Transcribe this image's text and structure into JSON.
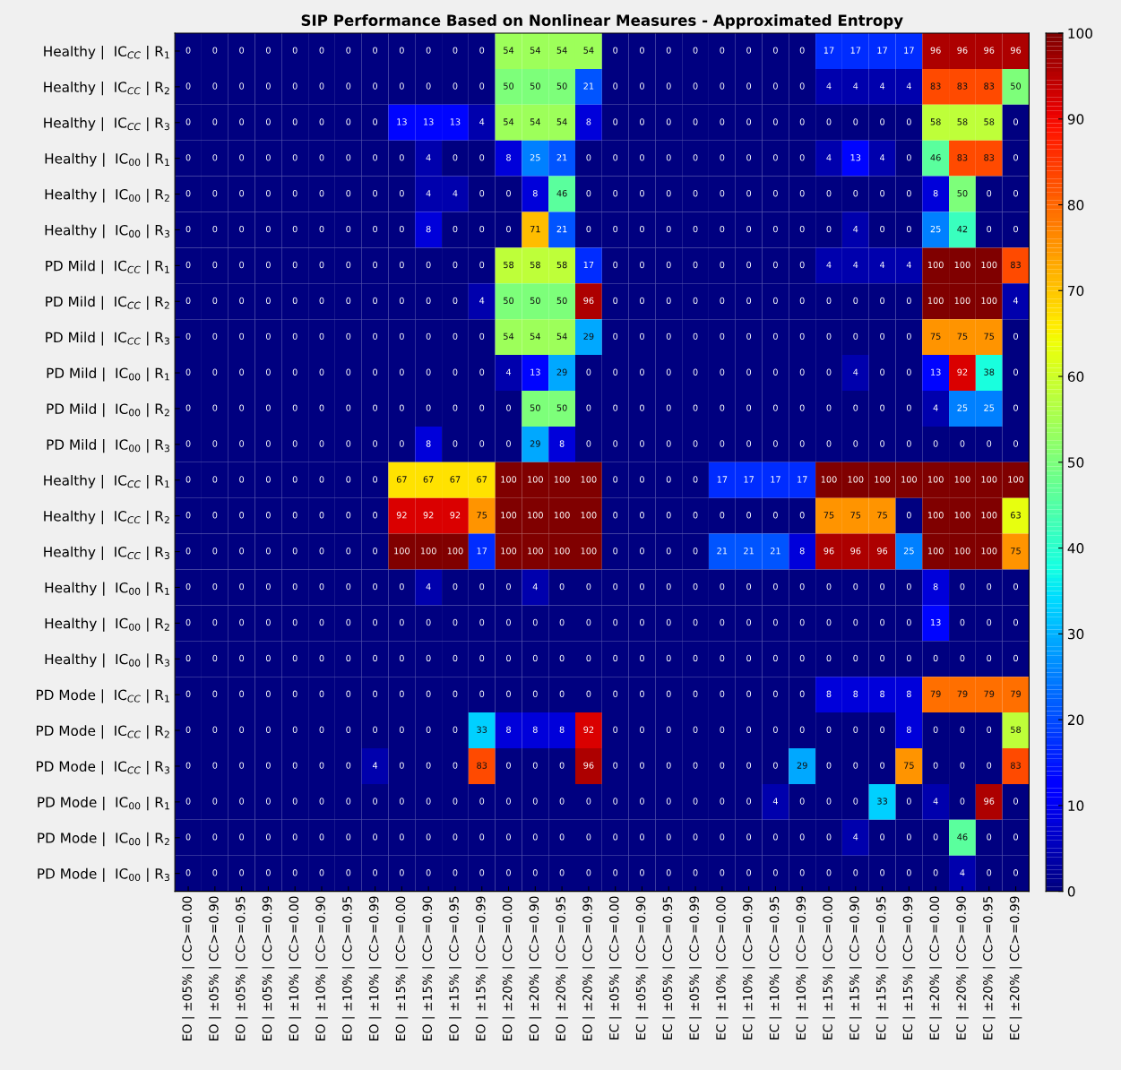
{
  "chart_data": {
    "type": "heatmap",
    "title": "SIP Performance Based on Nonlinear Measures - Approximated Entropy",
    "categories": [
      "EO | ±05% | CC>=0.00",
      "EO | ±05% | CC>=0.90",
      "EO | ±05% | CC>=0.95",
      "EO | ±05% | CC>=0.99",
      "EO | ±10% | CC>=0.00",
      "EO | ±10% | CC>=0.90",
      "EO | ±10% | CC>=0.95",
      "EO | ±10% | CC>=0.99",
      "EO | ±15% | CC>=0.00",
      "EO | ±15% | CC>=0.90",
      "EO | ±15% | CC>=0.95",
      "EO | ±15% | CC>=0.99",
      "EO | ±20% | CC>=0.00",
      "EO | ±20% | CC>=0.90",
      "EO | ±20% | CC>=0.95",
      "EO | ±20% | CC>=0.99",
      "EC | ±05% | CC>=0.00",
      "EC | ±05% | CC>=0.90",
      "EC | ±05% | CC>=0.95",
      "EC | ±05% | CC>=0.99",
      "EC | ±10% | CC>=0.00",
      "EC | ±10% | CC>=0.90",
      "EC | ±10% | CC>=0.95",
      "EC | ±10% | CC>=0.99",
      "EC | ±15% | CC>=0.00",
      "EC | ±15% | CC>=0.90",
      "EC | ±15% | CC>=0.95",
      "EC | ±15% | CC>=0.99",
      "EC | ±20% | CC>=0.00",
      "EC | ±20% | CC>=0.90",
      "EC | ±20% | CC>=0.95",
      "EC | ±20% | CC>=0.99"
    ],
    "y_categories": [
      "Healthy |  IC$_{CC}$ | R$_{1}$",
      "Healthy |  IC$_{CC}$ | R$_{2}$",
      "Healthy |  IC$_{CC}$ | R$_{3}$",
      "Healthy |  IC$_{00}$ | R$_{1}$",
      "Healthy |  IC$_{00}$ | R$_{2}$",
      "Healthy |  IC$_{00}$ | R$_{3}$",
      "PD Mild |  IC$_{CC}$ | R$_{1}$",
      "PD Mild |  IC$_{CC}$ | R$_{2}$",
      "PD Mild |  IC$_{CC}$ | R$_{3}$",
      "PD Mild |  IC$_{00}$ | R$_{1}$",
      "PD Mild |  IC$_{00}$ | R$_{2}$",
      "PD Mild |  IC$_{00}$ | R$_{3}$",
      "Healthy |  IC$_{CC}$ | R$_{1}$",
      "Healthy |  IC$_{CC}$ | R$_{2}$",
      "Healthy |  IC$_{CC}$ | R$_{3}$",
      "Healthy |  IC$_{00}$ | R$_{1}$",
      "Healthy |  IC$_{00}$ | R$_{2}$",
      "Healthy |  IC$_{00}$ | R$_{3}$",
      "PD Mode |  IC$_{CC}$ | R$_{1}$",
      "PD Mode |  IC$_{CC}$ | R$_{2}$",
      "PD Mode |  IC$_{CC}$ | R$_{3}$",
      "PD Mode |  IC$_{00}$ | R$_{1}$",
      "PD Mode |  IC$_{00}$ | R$_{2}$",
      "PD Mode |  IC$_{00}$ | R$_{3}$"
    ],
    "cells": [
      [
        0,
        0,
        0,
        0,
        0,
        0,
        0,
        0,
        0,
        0,
        0,
        0,
        54,
        54,
        54,
        54,
        0,
        0,
        0,
        0,
        0,
        0,
        0,
        0,
        17,
        17,
        17,
        17,
        96,
        96,
        96,
        96
      ],
      [
        0,
        0,
        0,
        0,
        0,
        0,
        0,
        0,
        0,
        0,
        0,
        0,
        50,
        50,
        50,
        21,
        0,
        0,
        0,
        0,
        0,
        0,
        0,
        0,
        4,
        4,
        4,
        4,
        83,
        83,
        83,
        50
      ],
      [
        0,
        0,
        0,
        0,
        0,
        0,
        0,
        0,
        13,
        13,
        13,
        4,
        54,
        54,
        54,
        8,
        0,
        0,
        0,
        0,
        0,
        0,
        0,
        0,
        0,
        0,
        0,
        0,
        58,
        58,
        58,
        0
      ],
      [
        0,
        0,
        0,
        0,
        0,
        0,
        0,
        0,
        0,
        4,
        0,
        0,
        8,
        25,
        21,
        0,
        0,
        0,
        0,
        0,
        0,
        0,
        0,
        0,
        4,
        13,
        4,
        0,
        46,
        83,
        83,
        0
      ],
      [
        0,
        0,
        0,
        0,
        0,
        0,
        0,
        0,
        0,
        4,
        4,
        0,
        0,
        8,
        46,
        0,
        0,
        0,
        0,
        0,
        0,
        0,
        0,
        0,
        0,
        0,
        0,
        0,
        8,
        50,
        0,
        0
      ],
      [
        0,
        0,
        0,
        0,
        0,
        0,
        0,
        0,
        0,
        8,
        0,
        0,
        0,
        71,
        21,
        0,
        0,
        0,
        0,
        0,
        0,
        0,
        0,
        0,
        0,
        4,
        0,
        0,
        25,
        42,
        0,
        0
      ],
      [
        0,
        0,
        0,
        0,
        0,
        0,
        0,
        0,
        0,
        0,
        0,
        0,
        58,
        58,
        58,
        17,
        0,
        0,
        0,
        0,
        0,
        0,
        0,
        0,
        4,
        4,
        4,
        4,
        100,
        100,
        100,
        83
      ],
      [
        0,
        0,
        0,
        0,
        0,
        0,
        0,
        0,
        0,
        0,
        0,
        4,
        50,
        50,
        50,
        96,
        0,
        0,
        0,
        0,
        0,
        0,
        0,
        0,
        0,
        0,
        0,
        0,
        100,
        100,
        100,
        4
      ],
      [
        0,
        0,
        0,
        0,
        0,
        0,
        0,
        0,
        0,
        0,
        0,
        0,
        54,
        54,
        54,
        29,
        0,
        0,
        0,
        0,
        0,
        0,
        0,
        0,
        0,
        0,
        0,
        0,
        75,
        75,
        75,
        0
      ],
      [
        0,
        0,
        0,
        0,
        0,
        0,
        0,
        0,
        0,
        0,
        0,
        0,
        4,
        13,
        29,
        0,
        0,
        0,
        0,
        0,
        0,
        0,
        0,
        0,
        0,
        4,
        0,
        0,
        13,
        92,
        38,
        0
      ],
      [
        0,
        0,
        0,
        0,
        0,
        0,
        0,
        0,
        0,
        0,
        0,
        0,
        0,
        50,
        50,
        0,
        0,
        0,
        0,
        0,
        0,
        0,
        0,
        0,
        0,
        0,
        0,
        0,
        4,
        25,
        25,
        0
      ],
      [
        0,
        0,
        0,
        0,
        0,
        0,
        0,
        0,
        0,
        8,
        0,
        0,
        0,
        29,
        8,
        0,
        0,
        0,
        0,
        0,
        0,
        0,
        0,
        0,
        0,
        0,
        0,
        0,
        0,
        0,
        0,
        0
      ],
      [
        0,
        0,
        0,
        0,
        0,
        0,
        0,
        0,
        67,
        67,
        67,
        67,
        100,
        100,
        100,
        100,
        0,
        0,
        0,
        0,
        17,
        17,
        17,
        17,
        100,
        100,
        100,
        100,
        100,
        100,
        100,
        100
      ],
      [
        0,
        0,
        0,
        0,
        0,
        0,
        0,
        0,
        92,
        92,
        92,
        75,
        100,
        100,
        100,
        100,
        0,
        0,
        0,
        0,
        0,
        0,
        0,
        0,
        75,
        75,
        75,
        0,
        100,
        100,
        100,
        63
      ],
      [
        0,
        0,
        0,
        0,
        0,
        0,
        0,
        0,
        100,
        100,
        100,
        17,
        100,
        100,
        100,
        100,
        0,
        0,
        0,
        0,
        21,
        21,
        21,
        8,
        96,
        96,
        96,
        25,
        100,
        100,
        100,
        75
      ],
      [
        0,
        0,
        0,
        0,
        0,
        0,
        0,
        0,
        0,
        4,
        0,
        0,
        0,
        4,
        0,
        0,
        0,
        0,
        0,
        0,
        0,
        0,
        0,
        0,
        0,
        0,
        0,
        0,
        8,
        0,
        0,
        0
      ],
      [
        0,
        0,
        0,
        0,
        0,
        0,
        0,
        0,
        0,
        0,
        0,
        0,
        0,
        0,
        0,
        0,
        0,
        0,
        0,
        0,
        0,
        0,
        0,
        0,
        0,
        0,
        0,
        0,
        13,
        0,
        0,
        0
      ],
      [
        0,
        0,
        0,
        0,
        0,
        0,
        0,
        0,
        0,
        0,
        0,
        0,
        0,
        0,
        0,
        0,
        0,
        0,
        0,
        0,
        0,
        0,
        0,
        0,
        0,
        0,
        0,
        0,
        0,
        0,
        0,
        0
      ],
      [
        0,
        0,
        0,
        0,
        0,
        0,
        0,
        0,
        0,
        0,
        0,
        0,
        0,
        0,
        0,
        0,
        0,
        0,
        0,
        0,
        0,
        0,
        0,
        0,
        8,
        8,
        8,
        8,
        79,
        79,
        79,
        79
      ],
      [
        0,
        0,
        0,
        0,
        0,
        0,
        0,
        0,
        0,
        0,
        0,
        33,
        8,
        8,
        8,
        92,
        0,
        0,
        0,
        0,
        0,
        0,
        0,
        0,
        0,
        0,
        0,
        8,
        0,
        0,
        0,
        58
      ],
      [
        0,
        0,
        0,
        0,
        0,
        0,
        0,
        4,
        0,
        0,
        0,
        83,
        0,
        0,
        0,
        96,
        0,
        0,
        0,
        0,
        0,
        0,
        0,
        29,
        0,
        0,
        0,
        75,
        0,
        0,
        0,
        83
      ],
      [
        0,
        0,
        0,
        0,
        0,
        0,
        0,
        0,
        0,
        0,
        0,
        0,
        0,
        0,
        0,
        0,
        0,
        0,
        0,
        0,
        0,
        0,
        4,
        0,
        0,
        0,
        33,
        0,
        4,
        0,
        96,
        0
      ],
      [
        0,
        0,
        0,
        0,
        0,
        0,
        0,
        0,
        0,
        0,
        0,
        0,
        0,
        0,
        0,
        0,
        0,
        0,
        0,
        0,
        0,
        0,
        0,
        0,
        0,
        4,
        0,
        0,
        0,
        46,
        0,
        0
      ],
      [
        0,
        0,
        0,
        0,
        0,
        0,
        0,
        0,
        0,
        0,
        0,
        0,
        0,
        0,
        0,
        0,
        0,
        0,
        0,
        0,
        0,
        0,
        0,
        0,
        0,
        0,
        0,
        0,
        0,
        4,
        0,
        0
      ]
    ],
    "clim": [
      0,
      100
    ],
    "cticks": [
      0,
      10,
      20,
      30,
      40,
      50,
      60,
      70,
      80,
      90,
      100
    ],
    "data_labels": true,
    "grid": false
  }
}
